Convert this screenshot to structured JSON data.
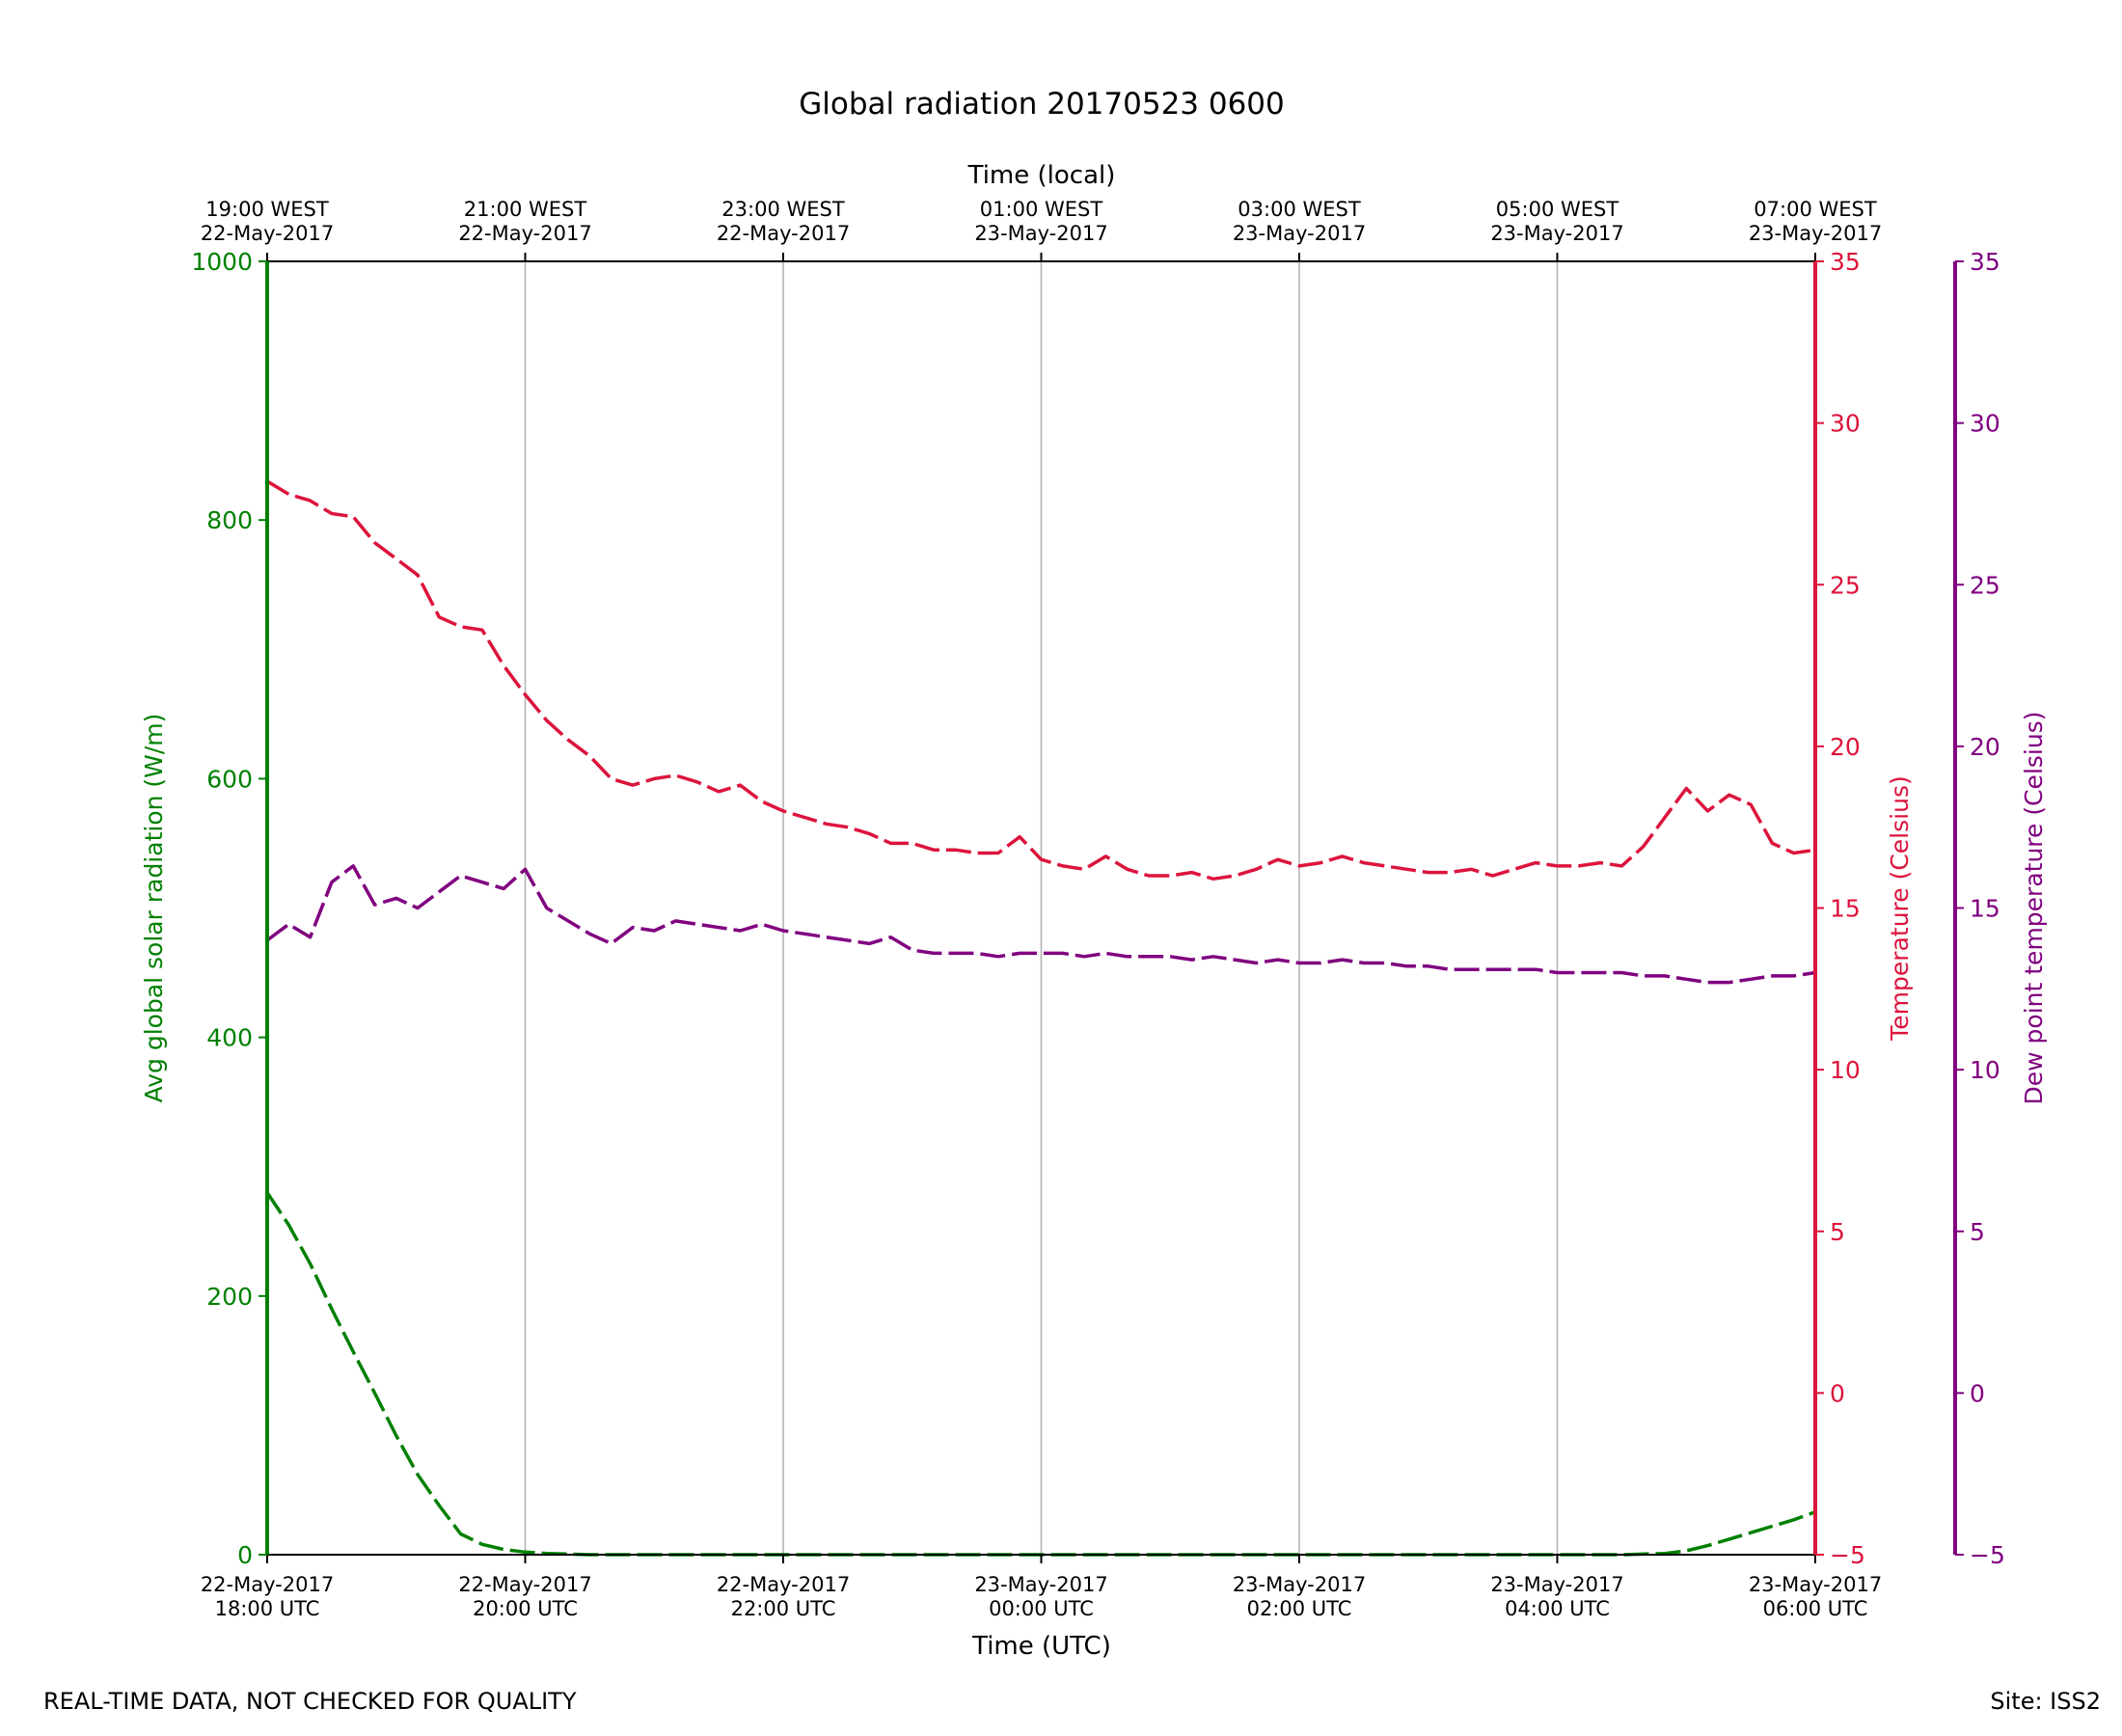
{
  "colors": {
    "radiation": "#008000",
    "temperature": "#DC143C",
    "dewpoint": "#800080",
    "grid": "#b0b0b0",
    "axis": "#000000"
  },
  "footer": {
    "disclaimer": "REAL-TIME DATA, NOT CHECKED FOR QUALITY",
    "site": "Site: ISS2"
  },
  "chart_data": {
    "type": "line",
    "title": "Global radiation 20170523 0600",
    "xlabel": "Time (UTC)",
    "x2label": "Time (local)",
    "x_range": [
      "2017-05-22T18:00",
      "2017-05-23T06:00"
    ],
    "grid": true,
    "xticks": [
      {
        "t": "2017-05-22T18:00",
        "utc": [
          "22-May-2017",
          "18:00 UTC"
        ],
        "local": [
          "19:00 WEST",
          "22-May-2017"
        ]
      },
      {
        "t": "2017-05-22T20:00",
        "utc": [
          "22-May-2017",
          "20:00 UTC"
        ],
        "local": [
          "21:00 WEST",
          "22-May-2017"
        ]
      },
      {
        "t": "2017-05-22T22:00",
        "utc": [
          "22-May-2017",
          "22:00 UTC"
        ],
        "local": [
          "23:00 WEST",
          "22-May-2017"
        ]
      },
      {
        "t": "2017-05-23T00:00",
        "utc": [
          "23-May-2017",
          "00:00 UTC"
        ],
        "local": [
          "01:00 WEST",
          "23-May-2017"
        ]
      },
      {
        "t": "2017-05-23T02:00",
        "utc": [
          "23-May-2017",
          "02:00 UTC"
        ],
        "local": [
          "03:00 WEST",
          "23-May-2017"
        ]
      },
      {
        "t": "2017-05-23T04:00",
        "utc": [
          "23-May-2017",
          "04:00 UTC"
        ],
        "local": [
          "05:00 WEST",
          "23-May-2017"
        ]
      },
      {
        "t": "2017-05-23T06:00",
        "utc": [
          "23-May-2017",
          "06:00 UTC"
        ],
        "local": [
          "07:00 WEST",
          "23-May-2017"
        ]
      }
    ],
    "axes": {
      "radiation": {
        "label": "Avg global solar radiation (W/m)",
        "ylim": [
          0,
          1000
        ],
        "ticks": [
          0,
          200,
          400,
          600,
          800,
          1000
        ]
      },
      "temperature": {
        "label": "Temperature (Celsius)",
        "ylim": [
          -5,
          35
        ],
        "ticks": [
          -5,
          0,
          5,
          10,
          15,
          20,
          25,
          30,
          35
        ]
      },
      "dewpoint": {
        "label": "Dew point temperature (Celsius)",
        "ylim": [
          -5,
          35
        ],
        "ticks": [
          -5,
          0,
          5,
          10,
          15,
          20,
          25,
          30,
          35
        ]
      }
    },
    "series": [
      {
        "key": "radiation",
        "axis": "radiation",
        "x": [
          "2017-05-22T18:00",
          "2017-05-22T18:10",
          "2017-05-22T18:20",
          "2017-05-22T18:30",
          "2017-05-22T18:40",
          "2017-05-22T18:50",
          "2017-05-22T19:00",
          "2017-05-22T19:10",
          "2017-05-22T19:20",
          "2017-05-22T19:30",
          "2017-05-22T19:40",
          "2017-05-22T19:50",
          "2017-05-22T20:00",
          "2017-05-22T20:10",
          "2017-05-22T20:20",
          "2017-05-22T20:30",
          "2017-05-23T04:30",
          "2017-05-23T04:50",
          "2017-05-23T05:00",
          "2017-05-23T05:10",
          "2017-05-23T05:20",
          "2017-05-23T05:30",
          "2017-05-23T05:40",
          "2017-05-23T05:50",
          "2017-05-23T06:00"
        ],
        "values": [
          280,
          255,
          225,
          190,
          157,
          125,
          92,
          62,
          38,
          16,
          8,
          4,
          2,
          1,
          0.5,
          0,
          0,
          1,
          3,
          7,
          12,
          17,
          22,
          27,
          33
        ]
      },
      {
        "key": "temperature",
        "axis": "temperature",
        "x": [
          "2017-05-22T18:00",
          "2017-05-22T18:10",
          "2017-05-22T18:20",
          "2017-05-22T18:30",
          "2017-05-22T18:40",
          "2017-05-22T18:50",
          "2017-05-22T19:00",
          "2017-05-22T19:10",
          "2017-05-22T19:20",
          "2017-05-22T19:30",
          "2017-05-22T19:40",
          "2017-05-22T19:50",
          "2017-05-22T20:00",
          "2017-05-22T20:10",
          "2017-05-22T20:20",
          "2017-05-22T20:30",
          "2017-05-22T20:40",
          "2017-05-22T20:50",
          "2017-05-22T21:00",
          "2017-05-22T21:10",
          "2017-05-22T21:20",
          "2017-05-22T21:30",
          "2017-05-22T21:40",
          "2017-05-22T21:50",
          "2017-05-22T22:00",
          "2017-05-22T22:10",
          "2017-05-22T22:20",
          "2017-05-22T22:30",
          "2017-05-22T22:40",
          "2017-05-22T22:50",
          "2017-05-22T23:00",
          "2017-05-22T23:10",
          "2017-05-22T23:20",
          "2017-05-22T23:30",
          "2017-05-22T23:40",
          "2017-05-22T23:50",
          "2017-05-23T00:00",
          "2017-05-23T00:10",
          "2017-05-23T00:20",
          "2017-05-23T00:30",
          "2017-05-23T00:40",
          "2017-05-23T00:50",
          "2017-05-23T01:00",
          "2017-05-23T01:10",
          "2017-05-23T01:20",
          "2017-05-23T01:30",
          "2017-05-23T01:40",
          "2017-05-23T01:50",
          "2017-05-23T02:00",
          "2017-05-23T02:10",
          "2017-05-23T02:20",
          "2017-05-23T02:30",
          "2017-05-23T02:40",
          "2017-05-23T02:50",
          "2017-05-23T03:00",
          "2017-05-23T03:10",
          "2017-05-23T03:20",
          "2017-05-23T03:30",
          "2017-05-23T03:40",
          "2017-05-23T03:50",
          "2017-05-23T04:00",
          "2017-05-23T04:10",
          "2017-05-23T04:20",
          "2017-05-23T04:30",
          "2017-05-23T04:40",
          "2017-05-23T04:50",
          "2017-05-23T05:00",
          "2017-05-23T05:10",
          "2017-05-23T05:20",
          "2017-05-23T05:30",
          "2017-05-23T05:40",
          "2017-05-23T05:50",
          "2017-05-23T06:00"
        ],
        "values": [
          28.2,
          27.8,
          27.6,
          27.2,
          27.1,
          26.3,
          25.8,
          25.3,
          24.0,
          23.7,
          23.6,
          22.5,
          21.6,
          20.8,
          20.2,
          19.7,
          19.0,
          18.8,
          19.0,
          19.1,
          18.9,
          18.6,
          18.8,
          18.3,
          18.0,
          17.8,
          17.6,
          17.5,
          17.3,
          17.0,
          17.0,
          16.8,
          16.8,
          16.7,
          16.7,
          17.2,
          16.5,
          16.3,
          16.2,
          16.6,
          16.2,
          16.0,
          16.0,
          16.1,
          15.9,
          16.0,
          16.2,
          16.5,
          16.3,
          16.4,
          16.6,
          16.4,
          16.3,
          16.2,
          16.1,
          16.1,
          16.2,
          16.0,
          16.2,
          16.4,
          16.3,
          16.3,
          16.4,
          16.3,
          16.9,
          17.8,
          18.7,
          18.0,
          18.5,
          18.2,
          17.0,
          16.7,
          16.8
        ]
      },
      {
        "key": "dewpoint",
        "axis": "dewpoint",
        "x": [
          "2017-05-22T18:00",
          "2017-05-22T18:10",
          "2017-05-22T18:20",
          "2017-05-22T18:30",
          "2017-05-22T18:40",
          "2017-05-22T18:50",
          "2017-05-22T19:00",
          "2017-05-22T19:10",
          "2017-05-22T19:20",
          "2017-05-22T19:30",
          "2017-05-22T19:40",
          "2017-05-22T19:50",
          "2017-05-22T20:00",
          "2017-05-22T20:10",
          "2017-05-22T20:20",
          "2017-05-22T20:30",
          "2017-05-22T20:40",
          "2017-05-22T20:50",
          "2017-05-22T21:00",
          "2017-05-22T21:10",
          "2017-05-22T21:20",
          "2017-05-22T21:30",
          "2017-05-22T21:40",
          "2017-05-22T21:50",
          "2017-05-22T22:00",
          "2017-05-22T22:10",
          "2017-05-22T22:20",
          "2017-05-22T22:30",
          "2017-05-22T22:40",
          "2017-05-22T22:50",
          "2017-05-22T23:00",
          "2017-05-22T23:10",
          "2017-05-22T23:20",
          "2017-05-22T23:30",
          "2017-05-22T23:40",
          "2017-05-22T23:50",
          "2017-05-23T00:00",
          "2017-05-23T00:10",
          "2017-05-23T00:20",
          "2017-05-23T00:30",
          "2017-05-23T00:40",
          "2017-05-23T00:50",
          "2017-05-23T01:00",
          "2017-05-23T01:10",
          "2017-05-23T01:20",
          "2017-05-23T01:30",
          "2017-05-23T01:40",
          "2017-05-23T01:50",
          "2017-05-23T02:00",
          "2017-05-23T02:10",
          "2017-05-23T02:20",
          "2017-05-23T02:30",
          "2017-05-23T02:40",
          "2017-05-23T02:50",
          "2017-05-23T03:00",
          "2017-05-23T03:10",
          "2017-05-23T03:20",
          "2017-05-23T03:30",
          "2017-05-23T03:40",
          "2017-05-23T03:50",
          "2017-05-23T04:00",
          "2017-05-23T04:10",
          "2017-05-23T04:20",
          "2017-05-23T04:30",
          "2017-05-23T04:40",
          "2017-05-23T04:50",
          "2017-05-23T05:00",
          "2017-05-23T05:10",
          "2017-05-23T05:20",
          "2017-05-23T05:30",
          "2017-05-23T05:40",
          "2017-05-23T05:50",
          "2017-05-23T06:00"
        ],
        "values": [
          14.0,
          14.5,
          14.1,
          15.8,
          16.3,
          15.1,
          15.3,
          15.0,
          15.5,
          16.0,
          15.8,
          15.6,
          16.2,
          15.0,
          14.6,
          14.2,
          13.9,
          14.4,
          14.3,
          14.6,
          14.5,
          14.4,
          14.3,
          14.5,
          14.3,
          14.2,
          14.1,
          14.0,
          13.9,
          14.1,
          13.7,
          13.6,
          13.6,
          13.6,
          13.5,
          13.6,
          13.6,
          13.6,
          13.5,
          13.6,
          13.5,
          13.5,
          13.5,
          13.4,
          13.5,
          13.4,
          13.3,
          13.4,
          13.3,
          13.3,
          13.4,
          13.3,
          13.3,
          13.2,
          13.2,
          13.1,
          13.1,
          13.1,
          13.1,
          13.1,
          13.0,
          13.0,
          13.0,
          13.0,
          12.9,
          12.9,
          12.8,
          12.7,
          12.7,
          12.8,
          12.9,
          12.9,
          13.0
        ]
      }
    ]
  }
}
